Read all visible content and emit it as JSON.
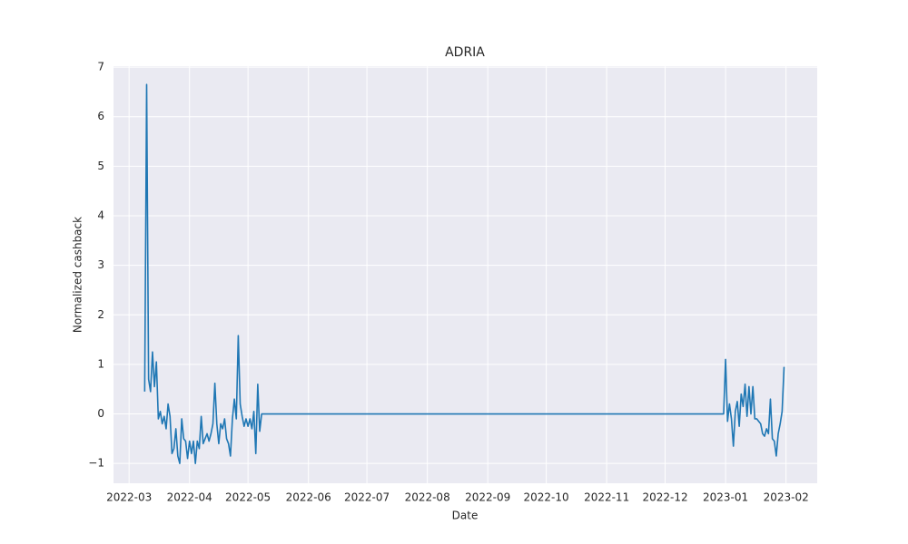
{
  "chart_data": {
    "type": "line",
    "title": "ADRIA",
    "xlabel": "Date",
    "ylabel": "Normalized cashback",
    "color": "#1f77b4",
    "grid": true,
    "background": "#eaeaf2",
    "x": [
      "2022-03-09",
      "2022-03-10",
      "2022-03-11",
      "2022-03-12",
      "2022-03-13",
      "2022-03-14",
      "2022-03-15",
      "2022-03-16",
      "2022-03-17",
      "2022-03-18",
      "2022-03-19",
      "2022-03-20",
      "2022-03-21",
      "2022-03-22",
      "2022-03-23",
      "2022-03-24",
      "2022-03-25",
      "2022-03-26",
      "2022-03-27",
      "2022-03-28",
      "2022-03-29",
      "2022-03-30",
      "2022-03-31",
      "2022-04-01",
      "2022-04-02",
      "2022-04-03",
      "2022-04-04",
      "2022-04-05",
      "2022-04-06",
      "2022-04-07",
      "2022-04-08",
      "2022-04-09",
      "2022-04-10",
      "2022-04-11",
      "2022-04-12",
      "2022-04-13",
      "2022-04-14",
      "2022-04-15",
      "2022-04-16",
      "2022-04-17",
      "2022-04-18",
      "2022-04-19",
      "2022-04-20",
      "2022-04-21",
      "2022-04-22",
      "2022-04-23",
      "2022-04-24",
      "2022-04-25",
      "2022-04-26",
      "2022-04-27",
      "2022-04-28",
      "2022-04-29",
      "2022-04-30",
      "2022-05-01",
      "2022-05-02",
      "2022-05-03",
      "2022-05-04",
      "2022-05-05",
      "2022-05-06",
      "2022-05-07",
      "2022-05-08",
      "2022-05-09",
      "2022-12-31",
      "2023-01-01",
      "2023-01-02",
      "2023-01-03",
      "2023-01-04",
      "2023-01-05",
      "2023-01-06",
      "2023-01-07",
      "2023-01-08",
      "2023-01-09",
      "2023-01-10",
      "2023-01-11",
      "2023-01-12",
      "2023-01-13",
      "2023-01-14",
      "2023-01-15",
      "2023-01-16",
      "2023-01-17",
      "2023-01-18",
      "2023-01-19",
      "2023-01-20",
      "2023-01-21",
      "2023-01-22",
      "2023-01-23",
      "2023-01-24",
      "2023-01-25",
      "2023-01-26",
      "2023-01-27",
      "2023-01-28",
      "2023-01-29",
      "2023-01-30",
      "2023-01-31"
    ],
    "values": [
      0.45,
      6.65,
      0.7,
      0.45,
      1.25,
      0.55,
      1.05,
      -0.1,
      0.05,
      -0.2,
      -0.05,
      -0.3,
      0.2,
      -0.05,
      -0.8,
      -0.7,
      -0.3,
      -0.85,
      -1.0,
      -0.1,
      -0.5,
      -0.55,
      -0.9,
      -0.55,
      -0.8,
      -0.55,
      -1.0,
      -0.55,
      -0.7,
      -0.05,
      -0.6,
      -0.5,
      -0.4,
      -0.55,
      -0.4,
      -0.2,
      0.62,
      -0.2,
      -0.6,
      -0.2,
      -0.3,
      -0.1,
      -0.5,
      -0.6,
      -0.85,
      -0.1,
      0.3,
      -0.1,
      1.58,
      0.2,
      -0.05,
      -0.25,
      -0.1,
      -0.25,
      -0.1,
      -0.3,
      0.05,
      -0.8,
      0.6,
      -0.35,
      0,
      0,
      0,
      1.1,
      -0.15,
      0.2,
      -0.1,
      -0.65,
      0.05,
      0.25,
      -0.25,
      0.4,
      0.15,
      0.6,
      -0.05,
      0.55,
      0.0,
      0.55,
      -0.1,
      -0.1,
      -0.15,
      -0.2,
      -0.4,
      -0.45,
      -0.3,
      -0.4,
      0.3,
      -0.5,
      -0.55,
      -0.85,
      -0.4,
      -0.2,
      0.05,
      0.95
    ],
    "xlim": [
      "2022-02-21",
      "2023-02-17"
    ],
    "xticks": [
      {
        "value": "2022-03-01",
        "label": "2022-03"
      },
      {
        "value": "2022-04-01",
        "label": "2022-04"
      },
      {
        "value": "2022-05-01",
        "label": "2022-05"
      },
      {
        "value": "2022-06-01",
        "label": "2022-06"
      },
      {
        "value": "2022-07-01",
        "label": "2022-07"
      },
      {
        "value": "2022-08-01",
        "label": "2022-08"
      },
      {
        "value": "2022-09-01",
        "label": "2022-09"
      },
      {
        "value": "2022-10-01",
        "label": "2022-10"
      },
      {
        "value": "2022-11-01",
        "label": "2022-11"
      },
      {
        "value": "2022-12-01",
        "label": "2022-12"
      },
      {
        "value": "2023-01-01",
        "label": "2023-01"
      },
      {
        "value": "2023-02-01",
        "label": "2023-02"
      }
    ],
    "ylim": [
      -1.4,
      7.02
    ],
    "yticks": [
      {
        "value": -1,
        "label": "−1"
      },
      0,
      1,
      2,
      3,
      4,
      5,
      6,
      7
    ]
  }
}
